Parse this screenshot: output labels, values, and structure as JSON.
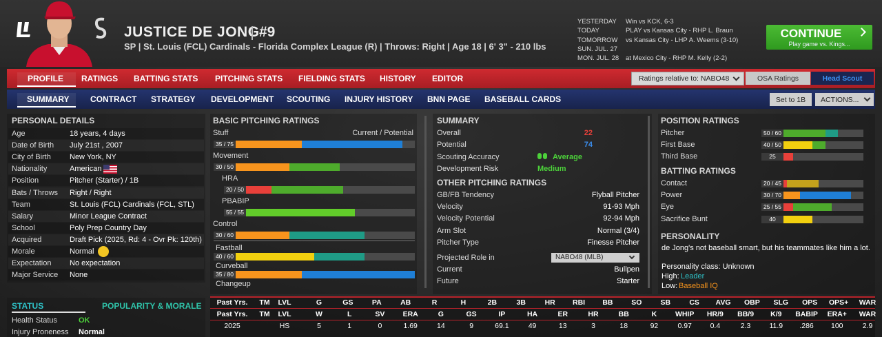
{
  "header": {
    "name": "JUSTICE DE JONG",
    "number": "#9",
    "info": "SP | St. Louis (FCL) Cardinals - Florida Complex League (R) | Throws: Right | Age 18 | 6' 3\" - 210 lbs",
    "schedule": [
      {
        "day": "YESTERDAY",
        "game": "Win vs KCK, 6-3"
      },
      {
        "day": "TODAY",
        "game": "PLAY vs Kansas City - RHP L. Braun"
      },
      {
        "day": "TOMORROW",
        "game": "vs Kansas City - LHP A. Weems (3-10)"
      },
      {
        "day": "SUN. JUL. 27"
      },
      {
        "day": "MON. JUL. 28",
        "game": "at Mexico City - RHP M. Kelly (2-2)"
      }
    ],
    "continue": {
      "label": "CONTINUE",
      "sub": "Play game vs. Kings..."
    }
  },
  "tabs": {
    "main": [
      "PROFILE",
      "RATINGS",
      "BATTING STATS",
      "PITCHING STATS",
      "FIELDING STATS",
      "HISTORY",
      "EDITOR"
    ],
    "sub": [
      "SUMMARY",
      "CONTRACT",
      "STRATEGY",
      "DEVELOPMENT",
      "SCOUTING",
      "INJURY HISTORY",
      "BNN PAGE",
      "BASEBALL CARDS"
    ],
    "ratings_relative": "Ratings relative to: NABO48",
    "osa": "OSA Ratings",
    "scout": "Head Scout",
    "set_position": "Set to 1B",
    "actions": "ACTIONS..."
  },
  "personal": {
    "title": "PERSONAL DETAILS",
    "rows": [
      {
        "label": "Age",
        "value": "18 years, 4 days"
      },
      {
        "label": "Date of Birth",
        "value": "July 21st , 2007"
      },
      {
        "label": "City of Birth",
        "value": "New York, NY"
      },
      {
        "label": "Nationality",
        "value": "American"
      },
      {
        "label": "Position",
        "value": "Pitcher (Starter) / 1B"
      },
      {
        "label": "Bats / Throws",
        "value": "Right / Right"
      },
      {
        "label": "Team",
        "value": "St. Louis (FCL) Cardinals (FCL, STL)"
      },
      {
        "label": "Salary",
        "value": "Minor League Contract"
      },
      {
        "label": "School",
        "value": "Poly Prep Country Day"
      },
      {
        "label": "Acquired",
        "value": "Draft Pick (2025, Rd: 4 - Ovr Pk: 120th)"
      },
      {
        "label": "Morale",
        "value": "Normal"
      },
      {
        "label": "Expectation",
        "value": "No expectation"
      },
      {
        "label": "Major Service",
        "value": "None"
      }
    ]
  },
  "status": {
    "tabs": [
      "STATUS",
      "POPULARITY & MORALE"
    ],
    "rows": [
      {
        "label": "Health Status",
        "value": "OK",
        "color": "#4cd13a"
      },
      {
        "label": "Injury Proneness",
        "value": "Normal"
      }
    ]
  },
  "rating_scale": [
    0,
    80
  ],
  "pitching": {
    "title": "BASIC PITCHING RATINGS",
    "legend": "Current / Potential",
    "ratings": [
      {
        "name": "Stuff",
        "label": "35 / 75",
        "current": 35,
        "potential": 75,
        "colors": [
          "#f7941d",
          "#1f7fd6"
        ]
      },
      {
        "name": "Movement",
        "label": "30 / 50",
        "current": 30,
        "potential": 50,
        "colors": [
          "#f7941d",
          "#4eab2c"
        ],
        "sub": [
          {
            "name": "HRA",
            "label": "20 / 50",
            "current": 20,
            "potential": 50,
            "colors": [
              "#e8403a",
              "#4eab2c"
            ]
          },
          {
            "name": "PBABIP",
            "label": "55 / 55",
            "current": 55,
            "potential": 55,
            "colors": [
              "#62cc2a",
              "#62cc2a"
            ]
          }
        ]
      },
      {
        "name": "Control",
        "label": "30 / 60",
        "current": 30,
        "potential": 60,
        "colors": [
          "#f7941d",
          "#1f9b86"
        ]
      }
    ],
    "pitches": [
      {
        "name": "Fastball",
        "label": "40 / 60",
        "current": 40,
        "potential": 60,
        "colors": [
          "#f2d00f",
          "#1f9b86"
        ]
      },
      {
        "name": "Curveball",
        "label": "35 / 80",
        "current": 35,
        "potential": 80,
        "colors": [
          "#f7941d",
          "#1f7fd6"
        ]
      },
      {
        "name": "Changeup"
      }
    ]
  },
  "summary": {
    "title": "SUMMARY",
    "rows": [
      {
        "label": "Overall",
        "value": 22,
        "color": "#e8403a"
      },
      {
        "label": "Potential",
        "value": 74,
        "color": "#3b8ff0"
      },
      {
        "label": "Scouting Accuracy",
        "value": "Average",
        "color": "#4cd13a"
      },
      {
        "label": "Development Risk",
        "value": "Medium",
        "color": "#4cd13a"
      }
    ],
    "other_title": "OTHER PITCHING RATINGS",
    "other": [
      {
        "label": "GB/FB Tendency",
        "value": "Flyball Pitcher"
      },
      {
        "label": "Velocity",
        "value": "91-93 Mph"
      },
      {
        "label": "Velocity Potential",
        "value": "92-94 Mph"
      },
      {
        "label": "Arm Slot",
        "value": "Normal (3/4)"
      },
      {
        "label": "Pitcher Type",
        "value": "Finesse Pitcher"
      }
    ],
    "role_label": "Projected Role in",
    "role_league": "NABO48 (MLB)",
    "roles": [
      {
        "label": "Current",
        "value": "Bullpen"
      },
      {
        "label": "Future",
        "value": "Starter"
      }
    ]
  },
  "positions": {
    "title": "POSITION RATINGS",
    "ratings": [
      {
        "name": "Pitcher",
        "label": "50 / 60",
        "current": 50,
        "potential": 60,
        "colors": [
          "#4eab2c",
          "#1f9b86"
        ]
      },
      {
        "name": "First Base",
        "label": "40 / 50",
        "current": 40,
        "potential": 50,
        "colors": [
          "#f2d00f",
          "#4eab2c"
        ]
      },
      {
        "name": "Third Base",
        "label": "25",
        "current": 25,
        "colors": [
          "#e8403a"
        ]
      }
    ]
  },
  "batting": {
    "title": "BATTING RATINGS",
    "ratings": [
      {
        "name": "Contact",
        "label": "20 / 45",
        "current": 20,
        "potential": 45,
        "colors": [
          "#e8403a",
          "#c4a21c"
        ]
      },
      {
        "name": "Power",
        "label": "30 / 70",
        "current": 30,
        "potential": 70,
        "colors": [
          "#f7941d",
          "#1f7fd6"
        ]
      },
      {
        "name": "Eye",
        "label": "25 / 55",
        "current": 25,
        "potential": 55,
        "colors": [
          "#e8403a",
          "#4eab2c"
        ]
      },
      {
        "name": "Sacrifice Bunt",
        "label": "40",
        "current": 40,
        "colors": [
          "#f2d00f"
        ]
      }
    ]
  },
  "personality": {
    "title": "PERSONALITY",
    "text": "de Jong's not baseball smart, but his teammates like him a lot.",
    "class": "Personality class: Unknown",
    "traits": [
      {
        "label": "High:",
        "value": "Leader",
        "color": "#2fc3c9"
      },
      {
        "label": "Low:",
        "value": "Baseball IQ",
        "color": "#f7941d"
      }
    ]
  },
  "stats": {
    "batting_header": [
      "Past Yrs.",
      "TM",
      "LVL",
      "G",
      "GS",
      "PA",
      "AB",
      "R",
      "H",
      "2B",
      "3B",
      "HR",
      "RBI",
      "BB",
      "SO",
      "SB",
      "CS",
      "AVG",
      "OBP",
      "SLG",
      "OPS",
      "OPS+",
      "WAR"
    ],
    "pitching_header": [
      "Past Yrs.",
      "TM",
      "LVL",
      "W",
      "L",
      "SV",
      "ERA",
      "G",
      "GS",
      "IP",
      "HA",
      "ER",
      "HR",
      "BB",
      "K",
      "WHIP",
      "HR/9",
      "BB/9",
      "K/9",
      "BABIP",
      "ERA+",
      "WAR"
    ],
    "pitching_rows": [
      [
        2025,
        null,
        "HS",
        5,
        1,
        0,
        1.69,
        14,
        9,
        69.1,
        49,
        13,
        3,
        18,
        92,
        0.97,
        0.4,
        2.3,
        11.9,
        ".286",
        100,
        2.9
      ]
    ]
  }
}
